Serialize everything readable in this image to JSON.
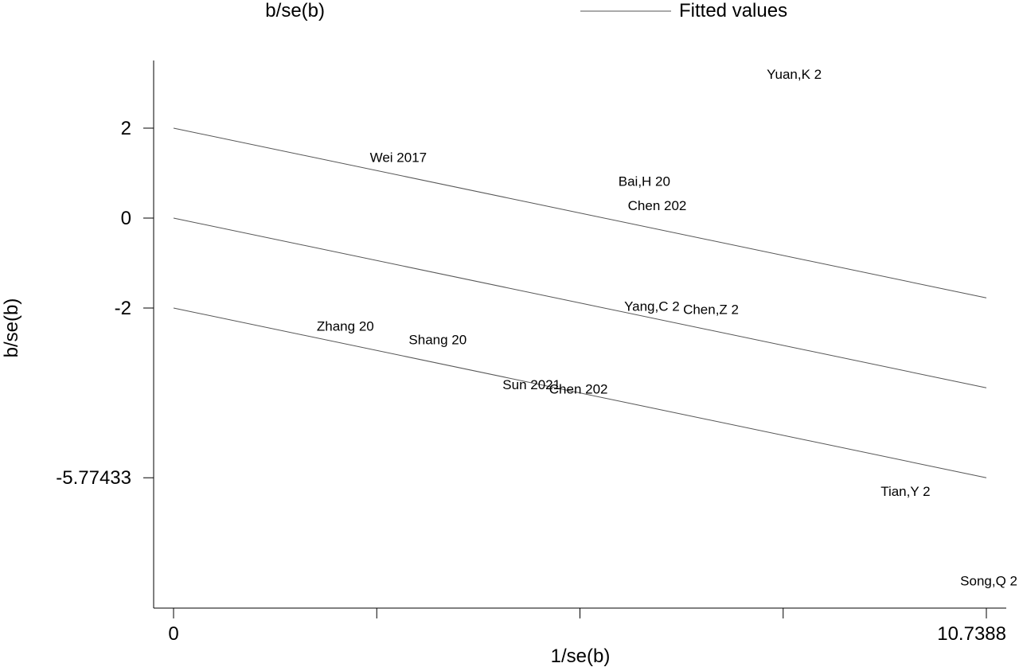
{
  "chart_data": {
    "type": "scatter",
    "xlabel": "1/se(b)",
    "ylabel": "b/se(b)",
    "xlim": [
      0,
      10.7388
    ],
    "x_ticks": [
      0,
      2.6847,
      5.3694,
      8.0541,
      10.7388
    ],
    "x_tick_labels": [
      "0",
      "",
      "",
      "",
      "10.7388"
    ],
    "y_ticks": [
      2,
      0,
      -2,
      -5.77433
    ],
    "y_tick_labels": [
      "2",
      "0",
      "-2",
      "-5.77433"
    ],
    "legend": {
      "position": "top",
      "entries": [
        {
          "label": "b/se(b)",
          "marker": "none"
        },
        {
          "label": "Fitted values",
          "marker": "line"
        }
      ]
    },
    "points": [
      {
        "label": "Yuan,K 2",
        "x": 8.2,
        "y": 3.2
      },
      {
        "label": "Wei 2017",
        "x": 2.97,
        "y": 1.35
      },
      {
        "label": "Bai,H 20",
        "x": 6.22,
        "y": 0.82
      },
      {
        "label": "Chen 202",
        "x": 6.39,
        "y": 0.28
      },
      {
        "label": "Yang,C 2",
        "x": 6.32,
        "y": -1.96
      },
      {
        "label": "Chen,Z 2",
        "x": 7.1,
        "y": -2.03
      },
      {
        "label": "Zhang 20",
        "x": 2.27,
        "y": -2.4
      },
      {
        "label": "Shang 20",
        "x": 3.49,
        "y": -2.7
      },
      {
        "label": "Sun 2021",
        "x": 4.73,
        "y": -3.7
      },
      {
        "label": "Chen 202",
        "x": 5.35,
        "y": -3.8
      },
      {
        "label": "Tian,Y 2",
        "x": 9.67,
        "y": -6.07
      },
      {
        "label": "Song,Q 2",
        "x": 10.83,
        "y": -8.06
      }
    ],
    "fitted_lines": [
      {
        "name": "upper",
        "x": [
          0,
          10.7388
        ],
        "y": [
          2,
          -1.77433
        ]
      },
      {
        "name": "fitted",
        "x": [
          0,
          10.7388
        ],
        "y": [
          0,
          -3.77433
        ]
      },
      {
        "name": "lower",
        "x": [
          0,
          10.7388
        ],
        "y": [
          -2,
          -5.77433
        ]
      }
    ]
  }
}
